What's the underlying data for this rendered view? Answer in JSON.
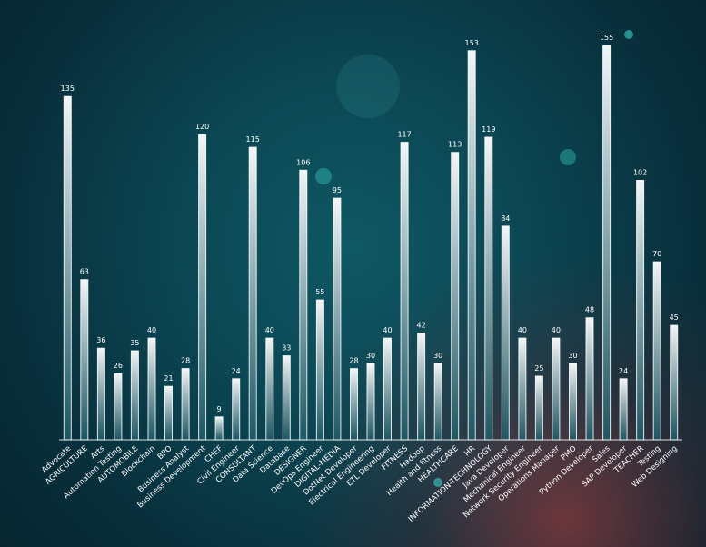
{
  "chart_data": {
    "type": "bar",
    "title": "",
    "xlabel": "",
    "ylabel": "",
    "ylim": [
      0,
      160
    ],
    "grid": false,
    "legend": "none",
    "colors": {
      "bar_top": "#ffffff",
      "bar_bottom": "#1d5a66",
      "text": "#ffffff",
      "accent": "#40dcd2"
    },
    "categories": [
      "Advocate",
      "AGRICULTURE",
      "Arts",
      "Automation Testing",
      "AUTOMOBILE",
      "Blockchain",
      "BPO",
      "Business Analyst",
      "Business Development",
      "CHEF",
      "Civil Engineer",
      "CONSULTANT",
      "Data Science",
      "Database",
      "DESIGNER",
      "DevOps Engineer",
      "DIGITAL-MEDIA",
      "DotNet Developer",
      "Electrical Engineering",
      "ETL Developer",
      "FITNESS",
      "Hadoop",
      "Health and fitness",
      "HEALTHCARE",
      "HR",
      "INFORMATION-TECHNOLOGY",
      "Java Developer",
      "Mechanical Engineer",
      "Network Security Engineer",
      "Operations Manager",
      "PMO",
      "Python Developer",
      "Sales",
      "SAP Developer",
      "TEACHER",
      "Testing",
      "Web Designing"
    ],
    "values": [
      135,
      63,
      36,
      26,
      35,
      40,
      21,
      28,
      120,
      9,
      24,
      115,
      40,
      33,
      106,
      55,
      95,
      28,
      30,
      40,
      117,
      42,
      30,
      113,
      153,
      119,
      84,
      40,
      25,
      40,
      30,
      48,
      155,
      24,
      102,
      70,
      45
    ]
  }
}
